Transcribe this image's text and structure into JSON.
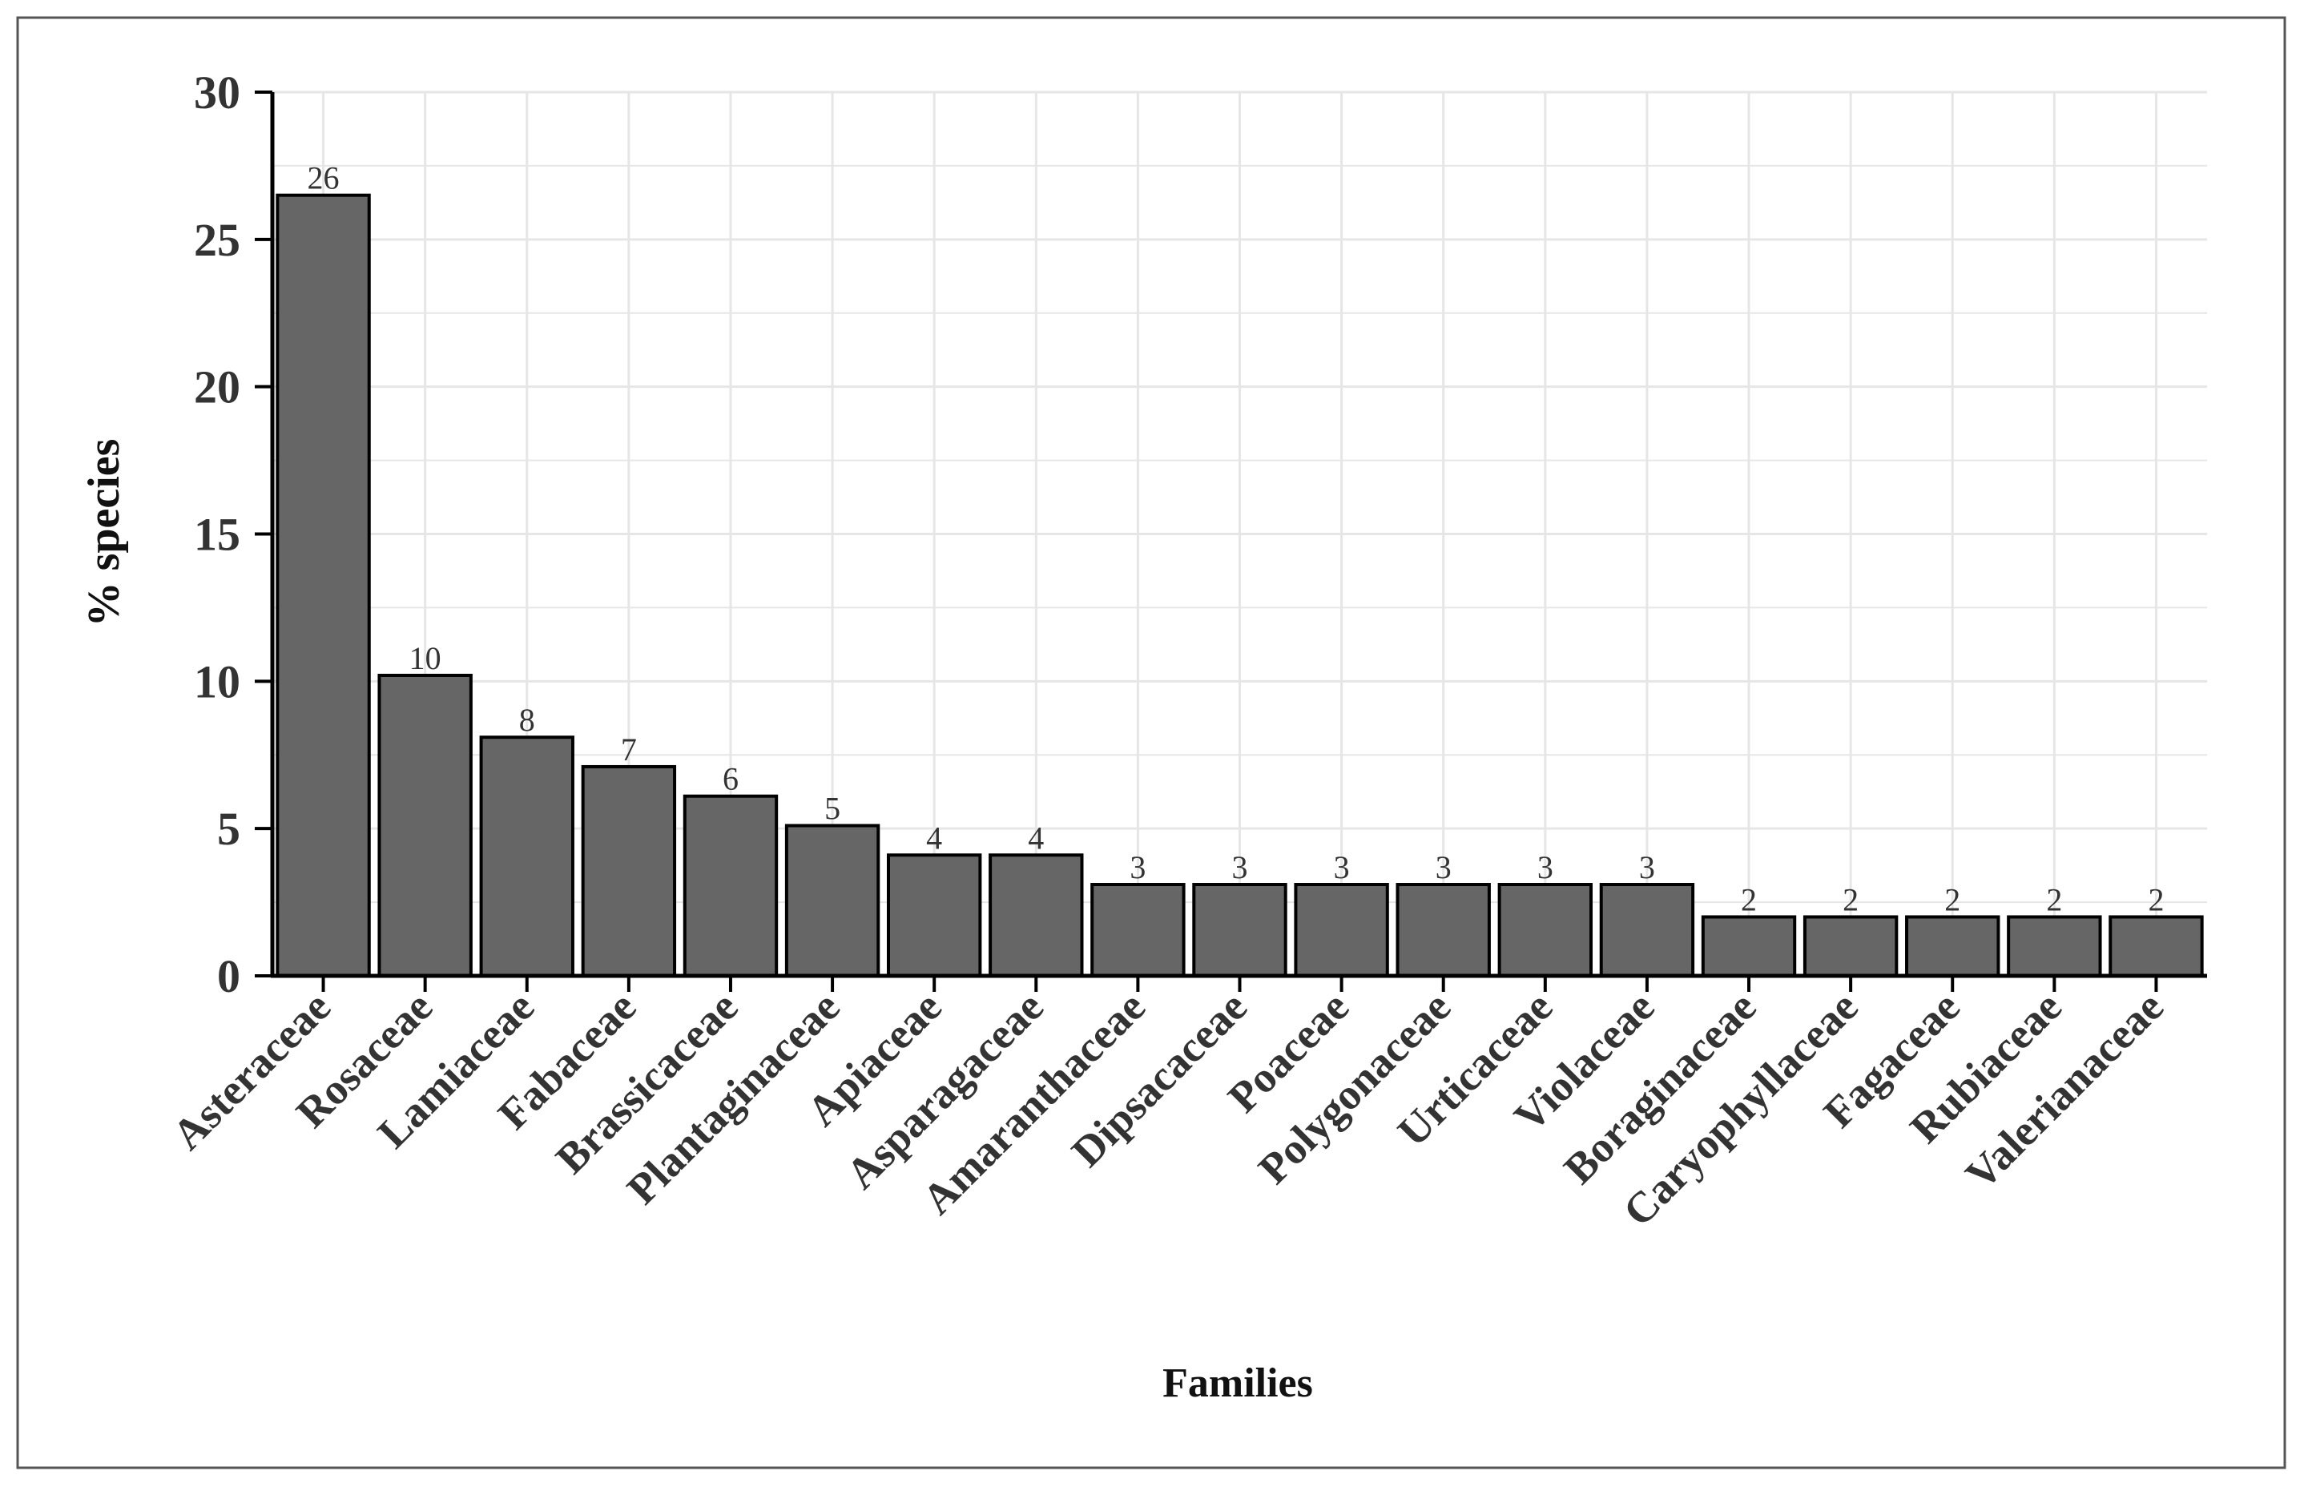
{
  "chart_data": {
    "type": "bar",
    "title": "",
    "xlabel": "Families",
    "ylabel": "% species",
    "ylim": [
      0,
      30
    ],
    "yticks": [
      0,
      5,
      10,
      15,
      20,
      25,
      30
    ],
    "grid": true,
    "legend": "none",
    "categories": [
      "Asteraceae",
      "Rosaceae",
      "Lamiaceae",
      "Fabaceae",
      "Brassicaceae",
      "Plantaginaceae",
      "Apiaceae",
      "Asparagaceae",
      "Amaranthaceae",
      "Dipsacaceae",
      "Poaceae",
      "Polygonaceae",
      "Urticaceae",
      "Violaceae",
      "Boraginaceae",
      "Caryophyllaceae",
      "Fagaceae",
      "Rubiaceae",
      "Valerianaceae"
    ],
    "values": [
      26.5,
      10.2,
      8.1,
      7.1,
      6.1,
      5.1,
      4.1,
      4.1,
      3.1,
      3.1,
      3.1,
      3.1,
      3.1,
      3.1,
      2.0,
      2.0,
      2.0,
      2.0,
      2.0
    ],
    "data_labels": [
      "26",
      "10",
      "8",
      "7",
      "6",
      "5",
      "4",
      "4",
      "3",
      "3",
      "3",
      "3",
      "3",
      "3",
      "2",
      "2",
      "2",
      "2",
      "2"
    ],
    "colors": {
      "bar_fill": "#666666",
      "bar_stroke": "#000000",
      "grid": "#e6e6e6",
      "axis": "#000000",
      "frame": "#555555"
    }
  }
}
